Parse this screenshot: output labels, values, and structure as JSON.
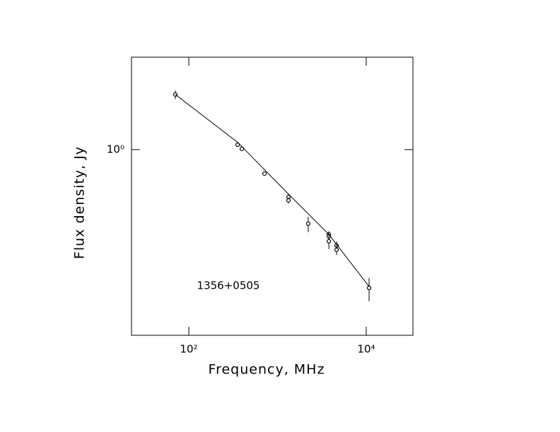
{
  "chart_data": {
    "type": "scatter",
    "xlabel": "Frequency, MHz",
    "ylabel": "Flux density, Jy",
    "annotation": "1356+0505",
    "log_x": true,
    "log_y": true,
    "xlim": [
      22.6,
      33600
    ],
    "ylim": [
      0.0098,
      10
    ],
    "xticks": [
      {
        "value": 100,
        "label": "10²"
      },
      {
        "value": 10000,
        "label": "10⁴"
      }
    ],
    "yticks": [
      {
        "value": 1,
        "label": "10⁰"
      }
    ],
    "series": [
      {
        "color": "#000000",
        "x": [
          70.6,
          355,
          396,
          713,
          1330,
          1330,
          2220,
          3790,
          3790,
          3790,
          4630,
          4630,
          10770
        ],
        "values": [
          3.94,
          1.13,
          1.02,
          0.55,
          0.308,
          0.282,
          0.158,
          0.121,
          0.115,
          0.102,
          0.0916,
          0.0824,
          0.0319
        ],
        "errors": [
          0.42,
          0.05,
          0.05,
          0.02,
          0.02,
          0.02,
          0.03,
          0.01,
          0.01,
          0.018,
          0.01,
          0.01,
          0.009
        ]
      },
      {
        "type": "line",
        "color": "#000000",
        "x": [
          70.6,
          355,
          1330,
          3790,
          10770
        ],
        "values": [
          3.94,
          1.2,
          0.33,
          0.121,
          0.033
        ]
      }
    ]
  }
}
